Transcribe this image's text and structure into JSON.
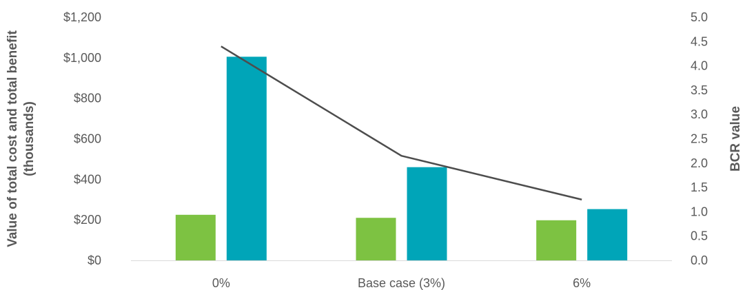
{
  "chart_data": {
    "type": "bar",
    "categories": [
      "0%",
      "Base case (3%)",
      "6%"
    ],
    "series": [
      {
        "kind": "bar",
        "axis": "left",
        "color": "#7dc242",
        "values": [
          225,
          210,
          198
        ]
      },
      {
        "kind": "bar",
        "axis": "left",
        "color": "#00a5b8",
        "values": [
          1005,
          460,
          253
        ]
      },
      {
        "kind": "line",
        "axis": "right",
        "color": "#4d4d4d",
        "values": [
          4.4,
          2.15,
          1.25
        ]
      }
    ],
    "ylabel": "Value of total cost and total benefit (thousands)",
    "ylabel_lines": [
      "Value of total cost and total benefit",
      "(thousands)"
    ],
    "y2label": "BCR value",
    "ylim": [
      0,
      1200
    ],
    "y2lim": [
      0,
      5
    ],
    "y_ticks": [
      "$0",
      "$200",
      "$400",
      "$600",
      "$800",
      "$1,000",
      "$1,200"
    ],
    "y2_ticks": [
      "0.0",
      "0.5",
      "1.0",
      "1.5",
      "2.0",
      "2.5",
      "3.0",
      "3.5",
      "4.0",
      "4.5",
      "5.0"
    ],
    "grid": false,
    "legend": "none"
  }
}
